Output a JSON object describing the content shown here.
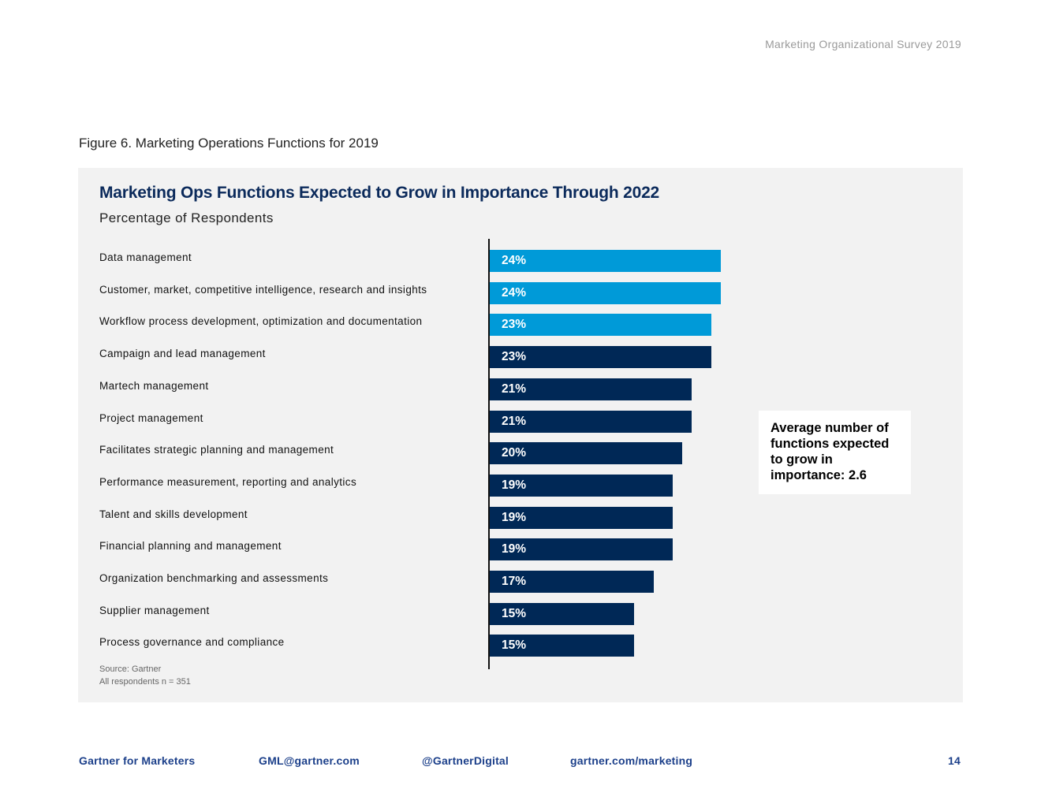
{
  "header": {
    "running_title": "Marketing Organizational Survey 2019"
  },
  "figure": {
    "caption": "Figure 6. Marketing Operations Functions for 2019"
  },
  "chart_data": {
    "type": "bar",
    "orientation": "horizontal",
    "title": "Marketing Ops Functions Expected to Grow in Importance Through 2022",
    "subtitle": "Percentage of Respondents",
    "categories": [
      "Data management",
      "Customer, market, competitive intelligence, research and insights",
      "Workflow process development, optimization and documentation",
      "Campaign and lead management",
      "Martech management",
      "Project management",
      "Facilitates strategic planning and management",
      "Performance measurement, reporting and analytics",
      "Talent and skills development",
      "Financial planning and management",
      "Organization benchmarking and assessments",
      "Supplier management",
      "Process governance and compliance"
    ],
    "values": [
      24,
      24,
      23,
      23,
      21,
      21,
      20,
      19,
      19,
      19,
      17,
      15,
      15
    ],
    "value_labels": [
      "24%",
      "24%",
      "23%",
      "23%",
      "21%",
      "21%",
      "20%",
      "19%",
      "19%",
      "19%",
      "17%",
      "15%",
      "15%"
    ],
    "bar_colors": [
      "#009ad8",
      "#009ad8",
      "#009ad8",
      "#002856",
      "#002856",
      "#002856",
      "#002856",
      "#002856",
      "#002856",
      "#002856",
      "#002856",
      "#002856",
      "#002856"
    ],
    "xlim": [
      0,
      24
    ],
    "grid": false,
    "legend": "none",
    "callout": "Average number of functions expected to grow in importance: 2.6",
    "source": "Source: Gartner",
    "sample": "All respondents n = 351"
  },
  "footer": {
    "brand": "Gartner for Marketers",
    "email": "GML@gartner.com",
    "handle": "@GartnerDigital",
    "website": "gartner.com/marketing",
    "page_number": "14"
  },
  "colors": {
    "highlight": "#009ad8",
    "primary": "#002856",
    "title": "#0b2a5b",
    "footer": "#1b3f8a",
    "panel": "#f2f2f2"
  }
}
